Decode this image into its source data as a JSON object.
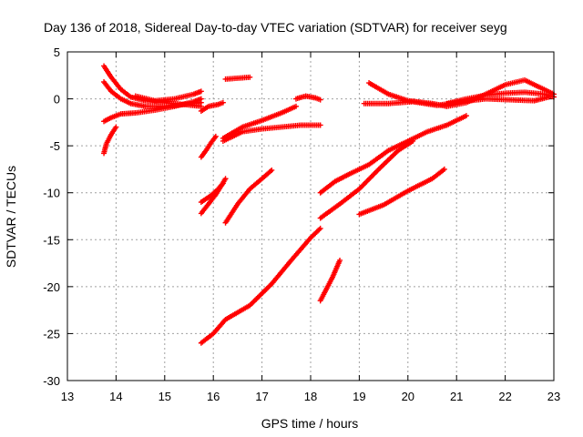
{
  "chart_data": {
    "type": "scatter",
    "title": "Day 136 of 2018, Sidereal Day-to-day VTEC variation (SDTVAR) for receiver seyg",
    "xlabel": "GPS time / hours",
    "ylabel": "SDTVAR / TECUs",
    "xlim": [
      13,
      23
    ],
    "ylim": [
      -30,
      5
    ],
    "xticks": [
      13,
      14,
      15,
      16,
      17,
      18,
      19,
      20,
      21,
      22,
      23
    ],
    "yticks": [
      5,
      0,
      -5,
      -10,
      -15,
      -20,
      -25,
      -30
    ],
    "grid": true,
    "marker": "plus",
    "color": "#ff0000",
    "series": [
      {
        "x": [
          13.75,
          13.9,
          14.1,
          14.3,
          14.6,
          15.0,
          15.4,
          15.75
        ],
        "y": [
          3.5,
          2.3,
          1.0,
          0.2,
          -0.2,
          -0.4,
          -0.6,
          -0.8
        ]
      },
      {
        "x": [
          13.75,
          13.9,
          14.1,
          14.3,
          14.6,
          15.0,
          15.4,
          15.75
        ],
        "y": [
          1.8,
          0.8,
          0.0,
          -0.5,
          -0.8,
          -0.8,
          -0.6,
          -0.4
        ]
      },
      {
        "x": [
          13.75,
          13.9,
          14.1,
          14.4,
          14.8,
          15.2,
          15.6,
          15.75
        ],
        "y": [
          -2.4,
          -2.0,
          -1.6,
          -1.5,
          -1.2,
          -0.8,
          -0.3,
          0.0
        ]
      },
      {
        "x": [
          13.75,
          13.8,
          13.9,
          14.0
        ],
        "y": [
          -5.8,
          -4.8,
          -3.8,
          -3.0
        ]
      },
      {
        "x": [
          14.4,
          14.8,
          15.2,
          15.6,
          15.75
        ],
        "y": [
          0.3,
          -0.2,
          0.0,
          0.5,
          0.8
        ]
      },
      {
        "x": [
          15.75,
          15.9,
          16.1,
          16.2
        ],
        "y": [
          -1.3,
          -0.8,
          -0.6,
          -0.4
        ]
      },
      {
        "x": [
          16.25,
          16.5,
          16.75
        ],
        "y": [
          2.1,
          2.2,
          2.3
        ]
      },
      {
        "x": [
          15.75,
          15.85,
          15.95,
          16.05
        ],
        "y": [
          -6.2,
          -5.5,
          -4.7,
          -4.0
        ]
      },
      {
        "x": [
          15.75,
          15.9,
          16.05,
          16.25
        ],
        "y": [
          -12.2,
          -11.2,
          -10.2,
          -8.5
        ]
      },
      {
        "x": [
          15.75,
          15.95,
          16.1,
          16.2
        ],
        "y": [
          -11.0,
          -10.3,
          -9.6,
          -9.0
        ]
      },
      {
        "x": [
          16.2,
          16.6,
          17.0,
          17.4,
          17.8,
          18.2
        ],
        "y": [
          -4.5,
          -3.5,
          -3.2,
          -3.0,
          -2.8,
          -2.8
        ]
      },
      {
        "x": [
          16.2,
          16.6,
          17.0,
          17.4,
          17.7
        ],
        "y": [
          -4.2,
          -3.0,
          -2.3,
          -1.5,
          -0.8
        ]
      },
      {
        "x": [
          17.7,
          17.9,
          18.1,
          18.2
        ],
        "y": [
          0.0,
          0.3,
          0.1,
          -0.1
        ]
      },
      {
        "x": [
          16.25,
          16.5,
          16.75,
          17.0,
          17.2
        ],
        "y": [
          -13.2,
          -11.2,
          -9.6,
          -8.5,
          -7.6
        ]
      },
      {
        "x": [
          15.75,
          16.0,
          16.25,
          16.75,
          17.2,
          17.6,
          18.0,
          18.2
        ],
        "y": [
          -26.0,
          -25.0,
          -23.5,
          -22.0,
          -19.7,
          -17.2,
          -14.8,
          -13.8
        ]
      },
      {
        "x": [
          18.2,
          18.3,
          18.45,
          18.6
        ],
        "y": [
          -21.5,
          -20.5,
          -19.0,
          -17.2
        ]
      },
      {
        "x": [
          18.2,
          18.5,
          18.8,
          19.2,
          19.6,
          20.0,
          20.4,
          20.8,
          21.2
        ],
        "y": [
          -10.0,
          -8.8,
          -8.0,
          -7.0,
          -5.5,
          -4.5,
          -3.5,
          -2.8,
          -1.8
        ]
      },
      {
        "x": [
          18.2,
          18.6,
          19.0,
          19.4,
          19.8,
          20.1
        ],
        "y": [
          -12.7,
          -11.2,
          -9.6,
          -7.5,
          -5.5,
          -4.5
        ]
      },
      {
        "x": [
          19.0,
          19.5,
          20.0,
          20.5,
          20.75
        ],
        "y": [
          -12.3,
          -11.3,
          -9.8,
          -8.5,
          -7.5
        ]
      },
      {
        "x": [
          19.1,
          19.6,
          20.1,
          20.6,
          21.1,
          21.6,
          22.1,
          22.6,
          22.9
        ],
        "y": [
          -0.5,
          -0.5,
          -0.3,
          -0.7,
          -0.3,
          0.0,
          -0.1,
          -0.2,
          0.2
        ]
      },
      {
        "x": [
          19.2,
          19.6,
          20.0,
          20.5,
          20.8,
          21.2,
          21.6,
          22.0,
          22.4,
          22.8,
          23.0
        ],
        "y": [
          1.7,
          0.5,
          -0.2,
          -0.5,
          -0.8,
          -0.4,
          0.5,
          1.5,
          2.0,
          1.0,
          0.5
        ]
      },
      {
        "x": [
          20.8,
          21.2,
          21.6,
          22.0,
          22.4,
          22.8,
          23.0
        ],
        "y": [
          -0.5,
          0.0,
          0.4,
          0.6,
          0.7,
          0.5,
          0.2
        ]
      }
    ]
  }
}
